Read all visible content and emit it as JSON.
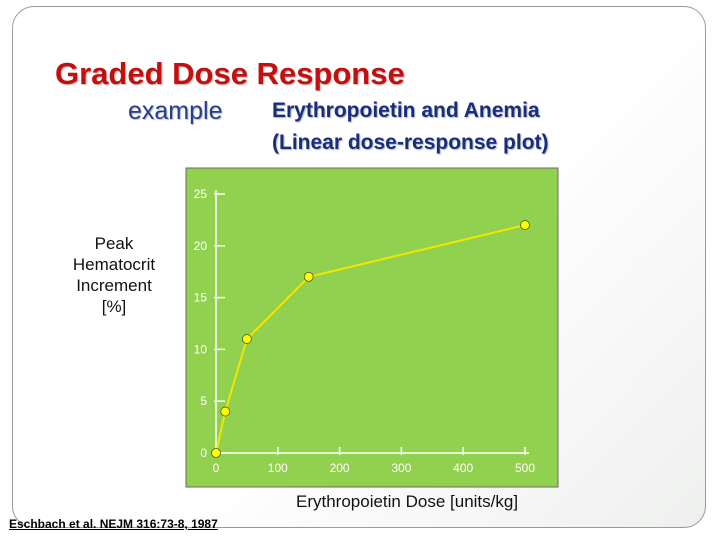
{
  "slide": {
    "title": "Graded Dose Response",
    "subtitle": "example",
    "heading_line1": "Erythropoietin and Anemia",
    "heading_line2": "(Linear dose-response plot)",
    "citation": "Eschbach et al. NEJM 316:73-8, 1987"
  },
  "colors": {
    "plot_background": "#92d050",
    "line": "#f2e600",
    "marker": "#ffff00",
    "title": "#c01010",
    "heading": "#1a2d78"
  },
  "chart_data": {
    "type": "line",
    "title": "",
    "xlabel": "Erythropoietin Dose [units/kg]",
    "ylabel_lines": [
      "Peak",
      "Hematocrit",
      "Increment",
      "[%]"
    ],
    "x": [
      0,
      15,
      50,
      150,
      500
    ],
    "values": [
      0,
      4,
      11,
      17,
      22
    ],
    "xlim": [
      0,
      500
    ],
    "ylim": [
      0,
      25
    ],
    "xticks": [
      0,
      100,
      200,
      300,
      400,
      500
    ],
    "yticks": [
      0,
      5,
      10,
      15,
      20,
      25
    ],
    "grid": false,
    "legend": "none"
  }
}
